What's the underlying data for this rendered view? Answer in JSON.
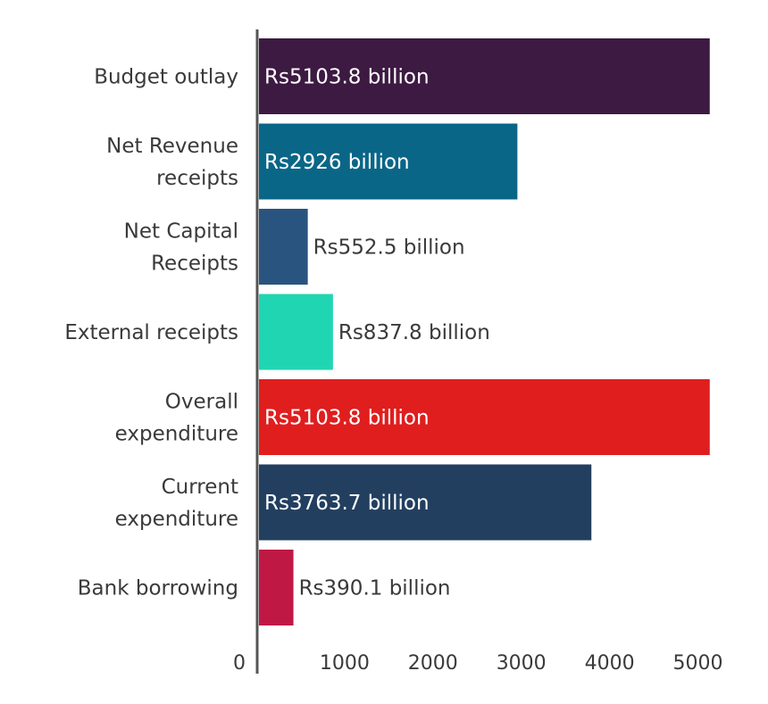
{
  "chart_data": {
    "type": "bar",
    "orientation": "horizontal",
    "categories": [
      [
        "Budget outlay"
      ],
      [
        "Net Revenue",
        "receipts"
      ],
      [
        "Net Capital",
        "Receipts"
      ],
      [
        "External receipts"
      ],
      [
        "Overall",
        "expenditure"
      ],
      [
        "Current",
        "expenditure"
      ],
      [
        "Bank borrowing"
      ]
    ],
    "values": [
      5103.8,
      2926,
      552.5,
      837.8,
      5103.8,
      3763.7,
      390.1
    ],
    "data_labels": [
      "Rs5103.8 billion",
      "Rs2926 billion",
      "Rs552.5 billion",
      "Rs837.8 billion",
      "Rs5103.8 billion",
      "Rs3763.7 billion",
      "Rs390.1 billion"
    ],
    "colors": [
      "#3d1a42",
      "#0a6687",
      "#2a5480",
      "#20d6b2",
      "#e01e1e",
      "#233f60",
      "#c01845"
    ],
    "label_inside": [
      true,
      true,
      false,
      false,
      true,
      true,
      false
    ],
    "x_ticks": [
      0,
      1000,
      2000,
      3000,
      4000,
      5000
    ],
    "xlim": [
      0,
      5103.8
    ],
    "title": "",
    "xlabel": "",
    "ylabel": "",
    "grid": false,
    "legend": "none"
  }
}
